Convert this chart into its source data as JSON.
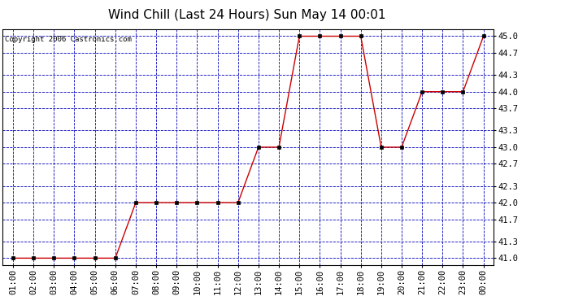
{
  "title": "Wind Chill (Last 24 Hours) Sun May 14 00:01",
  "copyright": "Copyright 2006 Castronics.com",
  "x_labels": [
    "01:00",
    "02:00",
    "03:00",
    "04:00",
    "05:00",
    "06:00",
    "07:00",
    "08:00",
    "09:00",
    "10:00",
    "11:00",
    "12:00",
    "13:00",
    "14:00",
    "15:00",
    "16:00",
    "17:00",
    "18:00",
    "19:00",
    "20:00",
    "21:00",
    "22:00",
    "23:00",
    "00:00"
  ],
  "y_values": [
    41.0,
    41.0,
    41.0,
    41.0,
    41.0,
    41.0,
    42.0,
    42.0,
    42.0,
    42.0,
    42.0,
    42.0,
    43.0,
    43.0,
    45.0,
    45.0,
    45.0,
    45.0,
    43.0,
    43.0,
    44.0,
    44.0,
    44.0,
    45.0
  ],
  "y_ticks": [
    41.0,
    41.3,
    41.7,
    42.0,
    42.3,
    42.7,
    43.0,
    43.3,
    43.7,
    44.0,
    44.3,
    44.7,
    45.0
  ],
  "y_tick_labels": [
    "41.0",
    "41.3",
    "41.7",
    "42.0",
    "42.3",
    "42.7",
    "43.0",
    "43.3",
    "43.7",
    "44.0",
    "44.3",
    "44.7",
    "45.0"
  ],
  "ylim": [
    40.87,
    45.13
  ],
  "line_color": "#cc0000",
  "marker_color": "#000000",
  "background_color": "#ffffff",
  "plot_bg_color": "#ffffff",
  "grid_color": "#0000bb",
  "title_fontsize": 11,
  "copyright_fontsize": 6.5,
  "tick_fontsize": 7.5
}
